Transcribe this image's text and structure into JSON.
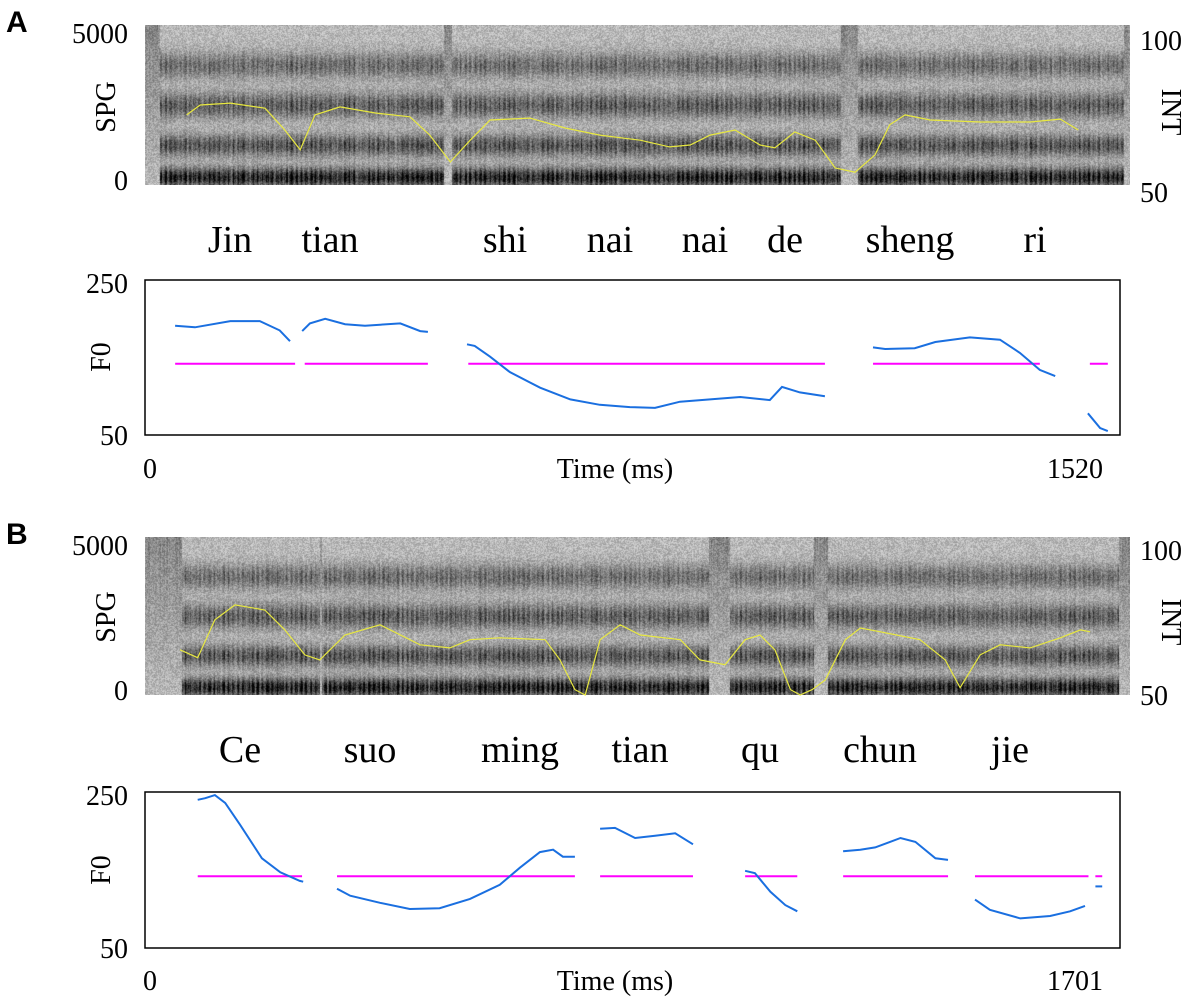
{
  "chart_data": [
    {
      "panel": "A",
      "type": "line",
      "spectrogram": {
        "ylabel": "SPG",
        "ylim": [
          0,
          5000
        ],
        "yticks": [
          "5000",
          "0"
        ],
        "y2label": "INT",
        "y2lim": [
          50,
          100
        ],
        "y2ticks": [
          "100",
          "50"
        ],
        "intensity_color": "#e8e840",
        "intensity": [
          [
            65,
            71.9
          ],
          [
            86,
            75
          ],
          [
            133,
            75.6
          ],
          [
            187,
            74
          ],
          [
            218,
            67.2
          ],
          [
            242,
            61
          ],
          [
            265,
            71.9
          ],
          [
            304,
            74.4
          ],
          [
            359,
            72.5
          ],
          [
            413,
            71.3
          ],
          [
            444,
            65.6
          ],
          [
            476,
            57.2
          ],
          [
            507,
            64
          ],
          [
            538,
            70.3
          ],
          [
            600,
            70.9
          ],
          [
            655,
            67.8
          ],
          [
            709,
            65.6
          ],
          [
            772,
            64
          ],
          [
            818,
            61.9
          ],
          [
            850,
            62.5
          ],
          [
            881,
            65.6
          ],
          [
            920,
            67.2
          ],
          [
            959,
            62.5
          ],
          [
            982,
            61.6
          ],
          [
            1013,
            66.6
          ],
          [
            1045,
            64
          ],
          [
            1076,
            55.3
          ],
          [
            1107,
            54
          ],
          [
            1138,
            59.4
          ],
          [
            1161,
            68.8
          ],
          [
            1185,
            71.9
          ],
          [
            1224,
            70.3
          ],
          [
            1302,
            69.7
          ],
          [
            1380,
            69.7
          ],
          [
            1427,
            70.6
          ],
          [
            1455,
            67.2
          ]
        ]
      },
      "syllables": [
        "Jin",
        "tian",
        "shi",
        "nai",
        "nai",
        "de",
        "sheng",
        "ri"
      ],
      "f0": {
        "ylabel": "F0",
        "ylim": [
          50,
          250
        ],
        "yticks": [
          "250",
          "50"
        ],
        "xlabel": "Time (ms)",
        "xlim": [
          0,
          1520
        ],
        "xticks": [
          "0",
          "1520"
        ],
        "contour_color": "#1a6fe0",
        "reference_color": "#ff00ff",
        "reference_value": 142,
        "reference_segments": [
          [
            47,
            234
          ],
          [
            249,
            441
          ],
          [
            504,
            1060
          ],
          [
            1135,
            1395
          ],
          [
            1473,
            1501
          ]
        ],
        "contour_segments": [
          [
            [
              47,
              191
            ],
            [
              78,
              189
            ],
            [
              133,
              197
            ],
            [
              179,
              197
            ],
            [
              210,
              185
            ],
            [
              226,
              171
            ]
          ],
          [
            [
              245,
              184
            ],
            [
              257,
              194
            ],
            [
              281,
              200
            ],
            [
              312,
              193
            ],
            [
              343,
              191
            ],
            [
              398,
              194
            ],
            [
              429,
              184
            ],
            [
              441,
              183
            ]
          ],
          [
            [
              502,
              167
            ],
            [
              514,
              165
            ],
            [
              538,
              151
            ],
            [
              569,
              131
            ],
            [
              616,
              111
            ],
            [
              663,
              96
            ],
            [
              709,
              89
            ],
            [
              756,
              86
            ],
            [
              795,
              85
            ],
            [
              834,
              93
            ],
            [
              881,
              96
            ],
            [
              928,
              99
            ],
            [
              974,
              95
            ],
            [
              993,
              112
            ],
            [
              1021,
              105
            ],
            [
              1060,
              100
            ]
          ],
          [
            [
              1135,
              163
            ],
            [
              1154,
              161
            ],
            [
              1200,
              162
            ],
            [
              1232,
              170
            ],
            [
              1286,
              176
            ],
            [
              1333,
              173
            ],
            [
              1364,
              156
            ],
            [
              1395,
              134
            ],
            [
              1419,
              126
            ]
          ],
          [
            [
              1470,
              78
            ],
            [
              1489,
              59
            ],
            [
              1501,
              55
            ]
          ]
        ]
      }
    },
    {
      "panel": "B",
      "type": "line",
      "spectrogram": {
        "ylabel": "SPG",
        "ylim": [
          0,
          5000
        ],
        "yticks": [
          "5000",
          "0"
        ],
        "y2label": "INT",
        "y2lim": [
          50,
          100
        ],
        "y2ticks": [
          "100",
          "50"
        ],
        "intensity_color": "#e8e840",
        "intensity": [
          [
            61,
            64.3
          ],
          [
            92,
            61.8
          ],
          [
            122,
            73.8
          ],
          [
            157,
            78.5
          ],
          [
            209,
            76.9
          ],
          [
            244,
            70.6
          ],
          [
            279,
            62.7
          ],
          [
            305,
            61.1
          ],
          [
            349,
            69
          ],
          [
            410,
            72.2
          ],
          [
            480,
            65.9
          ],
          [
            532,
            64.9
          ],
          [
            567,
            67.5
          ],
          [
            619,
            68.1
          ],
          [
            698,
            67.5
          ],
          [
            724,
            61.1
          ],
          [
            750,
            51.7
          ],
          [
            768,
            50
          ],
          [
            794,
            67.5
          ],
          [
            829,
            72.2
          ],
          [
            864,
            69
          ],
          [
            934,
            67.5
          ],
          [
            968,
            61.1
          ],
          [
            1012,
            59.6
          ],
          [
            1047,
            67.5
          ],
          [
            1073,
            69
          ],
          [
            1099,
            64.3
          ],
          [
            1126,
            51.7
          ],
          [
            1143,
            50
          ],
          [
            1164,
            51.7
          ],
          [
            1187,
            54.8
          ],
          [
            1222,
            67.5
          ],
          [
            1248,
            71.2
          ],
          [
            1283,
            70
          ],
          [
            1352,
            67.5
          ],
          [
            1396,
            61.1
          ],
          [
            1422,
            52.3
          ],
          [
            1457,
            62.7
          ],
          [
            1492,
            65.9
          ],
          [
            1544,
            64.9
          ],
          [
            1597,
            68.1
          ],
          [
            1632,
            70.6
          ],
          [
            1649,
            70
          ]
        ]
      },
      "syllables": [
        "Ce",
        "suo",
        "ming",
        "tian",
        "qu",
        "chun",
        "jie"
      ],
      "f0": {
        "ylabel": "F0",
        "ylim": [
          50,
          250
        ],
        "yticks": [
          "250",
          "50"
        ],
        "xlabel": "Time (ms)",
        "xlim": [
          0,
          1701
        ],
        "xticks": [
          "0",
          "1701"
        ],
        "contour_color": "#1a6fe0",
        "reference_color": "#ff00ff",
        "reference_value": 142,
        "reference_segments": [
          [
            92,
            274
          ],
          [
            335,
            750
          ],
          [
            794,
            956
          ],
          [
            1047,
            1138
          ],
          [
            1218,
            1401
          ],
          [
            1448,
            1646
          ],
          [
            1658,
            1670
          ]
        ],
        "contour_segments": [
          [
            [
              92,
              240
            ],
            [
              105,
              242
            ],
            [
              122,
              246
            ],
            [
              140,
              236
            ],
            [
              166,
              208
            ],
            [
              204,
              165
            ],
            [
              236,
              147
            ],
            [
              270,
              136
            ],
            [
              276,
              135
            ]
          ],
          [
            [
              335,
              126
            ],
            [
              358,
              117
            ],
            [
              410,
              108
            ],
            [
              462,
              100
            ],
            [
              514,
              101
            ],
            [
              567,
              113
            ],
            [
              619,
              131
            ],
            [
              654,
              153
            ],
            [
              689,
              173
            ],
            [
              712,
              176
            ],
            [
              729,
              167
            ],
            [
              750,
              167
            ]
          ],
          [
            [
              794,
              203
            ],
            [
              820,
              204
            ],
            [
              855,
              191
            ],
            [
              890,
              194
            ],
            [
              925,
              197
            ],
            [
              956,
              183
            ]
          ],
          [
            [
              1047,
              149
            ],
            [
              1064,
              146
            ],
            [
              1091,
              122
            ],
            [
              1117,
              105
            ],
            [
              1138,
              97
            ]
          ],
          [
            [
              1218,
              174
            ],
            [
              1248,
              176
            ],
            [
              1274,
              179
            ],
            [
              1318,
              191
            ],
            [
              1344,
              186
            ],
            [
              1379,
              165
            ],
            [
              1401,
              163
            ]
          ],
          [
            [
              1448,
              112
            ],
            [
              1474,
              99
            ],
            [
              1527,
              88
            ],
            [
              1579,
              91
            ],
            [
              1614,
              97
            ],
            [
              1640,
              104
            ]
          ],
          [
            [
              1658,
              129
            ],
            [
              1670,
              129
            ]
          ]
        ]
      }
    }
  ]
}
